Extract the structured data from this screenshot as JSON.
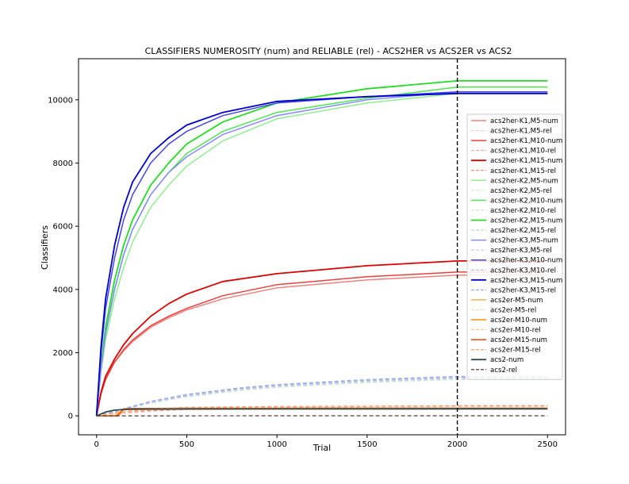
{
  "chart_data": {
    "type": "line",
    "title": "CLASSIFIERS NUMEROSITY (num) and RELIABLE (rel) - ACS2HER vs ACS2ER vs ACS2",
    "xlabel": "Trial",
    "ylabel": "Classifiers",
    "xlim": [
      -100,
      2600
    ],
    "ylim": [
      -600,
      11300
    ],
    "xticks": [
      0,
      500,
      1000,
      1500,
      2000,
      2500
    ],
    "yticks": [
      0,
      2000,
      4000,
      6000,
      8000,
      10000
    ],
    "grid": false,
    "legend_position": "center-right",
    "vline": {
      "x": 2000,
      "style": "dashed",
      "color": "#000000"
    },
    "series": [
      {
        "name": "acs2her-K1,M5-num",
        "color": "#f08080",
        "dash": "solid",
        "width": 1.5,
        "x": [
          0,
          25,
          50,
          100,
          150,
          200,
          300,
          400,
          500,
          700,
          1000,
          1500,
          2000,
          2500
        ],
        "y": [
          0,
          700,
          1150,
          1700,
          2050,
          2350,
          2800,
          3100,
          3350,
          3700,
          4050,
          4300,
          4450,
          4450
        ]
      },
      {
        "name": "acs2her-K1,M5-rel",
        "color": "#f8c8c8",
        "dash": "dashed",
        "width": 1.2,
        "x": [
          0,
          100,
          300,
          500,
          1000,
          1500,
          2000,
          2500
        ],
        "y": [
          0,
          60,
          140,
          190,
          240,
          270,
          290,
          290
        ]
      },
      {
        "name": "acs2her-K1,M10-num",
        "color": "#e8413c",
        "dash": "solid",
        "width": 1.5,
        "x": [
          0,
          25,
          50,
          100,
          150,
          200,
          300,
          400,
          500,
          700,
          1000,
          1500,
          2000,
          2500
        ],
        "y": [
          0,
          700,
          1150,
          1700,
          2100,
          2400,
          2850,
          3150,
          3400,
          3800,
          4150,
          4400,
          4550,
          4550
        ]
      },
      {
        "name": "acs2her-K1,M10-rel",
        "color": "#f4a8a8",
        "dash": "dashed",
        "width": 1.2,
        "x": [
          0,
          100,
          300,
          500,
          1000,
          1500,
          2000,
          2500
        ],
        "y": [
          0,
          70,
          160,
          210,
          260,
          290,
          310,
          310
        ]
      },
      {
        "name": "acs2her-K1,M15-num",
        "color": "#dd0000",
        "dash": "solid",
        "width": 1.8,
        "x": [
          0,
          25,
          50,
          100,
          150,
          200,
          300,
          400,
          500,
          700,
          1000,
          1500,
          2000,
          2500
        ],
        "y": [
          0,
          750,
          1250,
          1800,
          2250,
          2600,
          3150,
          3550,
          3850,
          4250,
          4500,
          4750,
          4900,
          4900
        ]
      },
      {
        "name": "acs2her-K1,M15-rel",
        "color": "#f08c78",
        "dash": "dashed",
        "width": 1.2,
        "x": [
          0,
          100,
          300,
          500,
          1000,
          1500,
          2000,
          2500
        ],
        "y": [
          0,
          80,
          170,
          220,
          270,
          300,
          320,
          320
        ]
      },
      {
        "name": "acs2her-K2,M5-num",
        "color": "#90ee90",
        "dash": "solid",
        "width": 1.5,
        "x": [
          0,
          25,
          50,
          100,
          150,
          200,
          300,
          400,
          500,
          700,
          1000,
          1500,
          2000,
          2500
        ],
        "y": [
          0,
          1400,
          2400,
          3700,
          4700,
          5500,
          6600,
          7300,
          7900,
          8700,
          9400,
          9900,
          10200,
          10200
        ]
      },
      {
        "name": "acs2her-K2,M5-rel",
        "color": "#c8f0c8",
        "dash": "dashed",
        "width": 1.2,
        "x": [
          0,
          100,
          300,
          500,
          800,
          1000,
          1500,
          2000,
          2500
        ],
        "y": [
          0,
          120,
          400,
          600,
          800,
          900,
          1050,
          1150,
          1150
        ]
      },
      {
        "name": "acs2her-K2,M10-num",
        "color": "#4ce84c",
        "dash": "solid",
        "width": 1.5,
        "x": [
          0,
          25,
          50,
          100,
          150,
          200,
          300,
          400,
          500,
          700,
          1000,
          1500,
          2000,
          2500
        ],
        "y": [
          0,
          1500,
          2600,
          4000,
          5100,
          5900,
          7000,
          7700,
          8300,
          9000,
          9600,
          10050,
          10400,
          10400
        ]
      },
      {
        "name": "acs2her-K2,M10-rel",
        "color": "#b8ecb8",
        "dash": "dashed",
        "width": 1.2,
        "x": [
          0,
          100,
          300,
          500,
          800,
          1000,
          1500,
          2000,
          2500
        ],
        "y": [
          0,
          130,
          430,
          640,
          850,
          950,
          1100,
          1200,
          1200
        ]
      },
      {
        "name": "acs2her-K2,M15-num",
        "color": "#22dd22",
        "dash": "solid",
        "width": 1.8,
        "x": [
          0,
          25,
          50,
          100,
          150,
          200,
          300,
          400,
          500,
          700,
          1000,
          1500,
          2000,
          2500
        ],
        "y": [
          0,
          1600,
          2800,
          4300,
          5400,
          6200,
          7300,
          8000,
          8600,
          9300,
          9900,
          10350,
          10600,
          10600
        ]
      },
      {
        "name": "acs2her-K2,M15-rel",
        "color": "#a8e8a8",
        "dash": "dashed",
        "width": 1.2,
        "x": [
          0,
          100,
          300,
          500,
          800,
          1000,
          1500,
          2000,
          2500
        ],
        "y": [
          0,
          140,
          450,
          660,
          880,
          980,
          1130,
          1230,
          1230
        ]
      },
      {
        "name": "acs2her-K3,M5-num",
        "color": "#8888ff",
        "dash": "solid",
        "width": 1.5,
        "x": [
          0,
          25,
          50,
          100,
          150,
          200,
          300,
          400,
          500,
          700,
          1000,
          1500,
          2000,
          2500
        ],
        "y": [
          0,
          1500,
          2600,
          4000,
          5100,
          5900,
          7000,
          7700,
          8200,
          8900,
          9500,
          10000,
          10250,
          10250
        ]
      },
      {
        "name": "acs2her-K3,M5-rel",
        "color": "#c8c8f4",
        "dash": "dashed",
        "width": 1.2,
        "x": [
          0,
          100,
          300,
          500,
          800,
          1000,
          1500,
          2000,
          2500
        ],
        "y": [
          0,
          130,
          420,
          620,
          830,
          930,
          1080,
          1180,
          1180
        ]
      },
      {
        "name": "acs2her-K3,M10-num",
        "color": "#4444ee",
        "dash": "solid",
        "width": 1.5,
        "x": [
          0,
          25,
          50,
          100,
          150,
          200,
          300,
          400,
          500,
          700,
          1000,
          1500,
          2000,
          2500
        ],
        "y": [
          0,
          2000,
          3400,
          5000,
          6200,
          7000,
          8000,
          8600,
          9000,
          9500,
          9900,
          10100,
          10250,
          10250
        ]
      },
      {
        "name": "acs2her-K3,M10-rel",
        "color": "#b0b8f0",
        "dash": "dashed",
        "width": 1.2,
        "x": [
          0,
          100,
          300,
          500,
          800,
          1000,
          1500,
          2000,
          2500
        ],
        "y": [
          0,
          140,
          440,
          650,
          860,
          960,
          1120,
          1220,
          1220
        ]
      },
      {
        "name": "acs2her-K3,M15-num",
        "color": "#0000cc",
        "dash": "solid",
        "width": 1.8,
        "x": [
          0,
          25,
          50,
          100,
          150,
          200,
          300,
          400,
          500,
          700,
          1000,
          1500,
          2000,
          2500
        ],
        "y": [
          0,
          2200,
          3700,
          5400,
          6600,
          7400,
          8300,
          8800,
          9200,
          9600,
          9950,
          10100,
          10200,
          10200
        ]
      },
      {
        "name": "acs2her-K3,M15-rel",
        "color": "#9aaae8",
        "dash": "dashed",
        "width": 1.2,
        "x": [
          0,
          100,
          300,
          500,
          800,
          1000,
          1500,
          2000,
          2500
        ],
        "y": [
          0,
          150,
          460,
          680,
          890,
          990,
          1150,
          1250,
          1250
        ]
      },
      {
        "name": "acs2er-M5-num",
        "color": "#ffb347",
        "dash": "solid",
        "width": 1.5,
        "x": [
          0,
          100,
          130,
          150,
          200,
          500,
          1000,
          2000,
          2500
        ],
        "y": [
          0,
          0,
          120,
          190,
          200,
          210,
          215,
          220,
          220
        ]
      },
      {
        "name": "acs2er-M5-rel",
        "color": "#ffd8b0",
        "dash": "dashed",
        "width": 1.2,
        "x": [
          0,
          100,
          300,
          500,
          1000,
          2000,
          2500
        ],
        "y": [
          0,
          80,
          200,
          250,
          280,
          300,
          300
        ]
      },
      {
        "name": "acs2er-M10-num",
        "color": "#ff8c00",
        "dash": "solid",
        "width": 1.5,
        "x": [
          0,
          110,
          135,
          150,
          200,
          500,
          1000,
          2000,
          2500
        ],
        "y": [
          0,
          0,
          140,
          210,
          220,
          225,
          228,
          230,
          230
        ]
      },
      {
        "name": "acs2er-M10-rel",
        "color": "#ffc090",
        "dash": "dashed",
        "width": 1.2,
        "x": [
          0,
          100,
          300,
          500,
          1000,
          2000,
          2500
        ],
        "y": [
          0,
          90,
          210,
          260,
          290,
          310,
          310
        ]
      },
      {
        "name": "acs2er-M15-num",
        "color": "#f06020",
        "dash": "solid",
        "width": 1.8,
        "x": [
          0,
          120,
          140,
          155,
          200,
          500,
          1000,
          2000,
          2500
        ],
        "y": [
          0,
          0,
          150,
          220,
          230,
          235,
          238,
          240,
          240
        ]
      },
      {
        "name": "acs2er-M15-rel",
        "color": "#f4a070",
        "dash": "dashed",
        "width": 1.2,
        "x": [
          0,
          100,
          300,
          500,
          1000,
          2000,
          2500
        ],
        "y": [
          0,
          100,
          220,
          270,
          300,
          320,
          320
        ]
      },
      {
        "name": "acs2-num",
        "color": "#2f4f4f",
        "dash": "solid",
        "width": 1.8,
        "x": [
          0,
          50,
          100,
          150,
          200,
          500,
          1000,
          2000,
          2500
        ],
        "y": [
          0,
          120,
          180,
          200,
          210,
          215,
          218,
          220,
          220
        ]
      },
      {
        "name": "acs2-rel",
        "color": "#5a3a3a",
        "dash": "dashed",
        "width": 1.2,
        "x": [
          0,
          500,
          1000,
          2000,
          2500
        ],
        "y": [
          0,
          0,
          2,
          3,
          3
        ]
      }
    ]
  }
}
